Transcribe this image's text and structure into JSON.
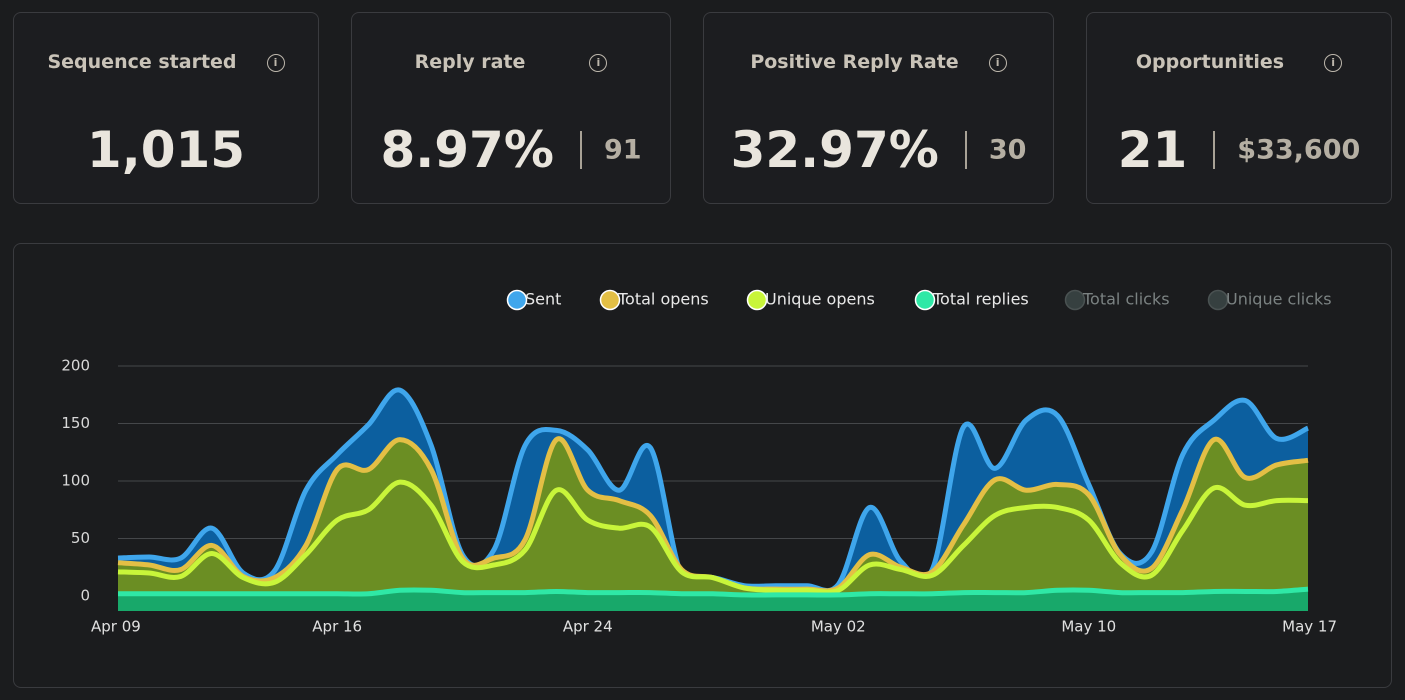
{
  "cards": [
    {
      "title": "Sequence started",
      "value": "1,015"
    },
    {
      "title": "Reply rate",
      "value": "8.97%",
      "secondary": "91"
    },
    {
      "title": "Positive Reply Rate",
      "value": "32.97%",
      "secondary": "30"
    },
    {
      "title": "Opportunities",
      "value": "21",
      "secondary": "$33,600"
    }
  ],
  "chart_data": {
    "type": "area",
    "categories": [
      "Apr 09",
      null,
      null,
      null,
      null,
      null,
      null,
      "Apr 16",
      null,
      null,
      null,
      null,
      null,
      null,
      null,
      "Apr 24",
      null,
      null,
      null,
      null,
      null,
      null,
      null,
      "May 02",
      null,
      null,
      null,
      null,
      null,
      null,
      null,
      "May 10",
      null,
      null,
      null,
      null,
      null,
      null,
      "May 17"
    ],
    "series": [
      {
        "name": "Sent",
        "color": "#3fa6ec",
        "fill": "#0c5f9f",
        "values": [
          33,
          34,
          33,
          59,
          20,
          22,
          92,
          123,
          149,
          179,
          131,
          36,
          40,
          131,
          144,
          127,
          92,
          129,
          18,
          16,
          9,
          9,
          9,
          10,
          77,
          30,
          23,
          147,
          111,
          153,
          157,
          97,
          37,
          38,
          123,
          153,
          170,
          137,
          146
        ]
      },
      {
        "name": "Total opens",
        "color": "#e3bf45",
        "fill": "#6b8e23",
        "values": [
          29,
          27,
          23,
          44,
          17,
          16,
          44,
          110,
          110,
          136,
          110,
          33,
          33,
          49,
          136,
          92,
          83,
          70,
          23,
          16,
          7,
          6,
          6,
          7,
          36,
          25,
          21,
          62,
          101,
          92,
          97,
          88,
          36,
          24,
          75,
          136,
          103,
          114,
          118
        ]
      },
      {
        "name": "Unique opens",
        "color": "#c8f53a",
        "fill": "#6b8e23",
        "values": [
          21,
          20,
          17,
          37,
          16,
          12,
          36,
          66,
          75,
          99,
          79,
          30,
          27,
          40,
          92,
          66,
          59,
          60,
          21,
          16,
          7,
          5,
          5,
          5,
          27,
          23,
          18,
          44,
          70,
          77,
          77,
          66,
          29,
          18,
          57,
          94,
          79,
          83,
          83
        ]
      },
      {
        "name": "Total replies",
        "color": "#2fe8a6",
        "fill": "#18a86a",
        "values": [
          2,
          2,
          2,
          2,
          2,
          2,
          2,
          2,
          2,
          5,
          5,
          3,
          3,
          3,
          4,
          3,
          3,
          3,
          2,
          2,
          1,
          1,
          1,
          1,
          2,
          2,
          2,
          3,
          3,
          3,
          5,
          5,
          3,
          3,
          3,
          4,
          4,
          4,
          6
        ]
      }
    ],
    "hidden_series": [
      {
        "name": "Total clicks",
        "color": "#364040"
      },
      {
        "name": "Unique clicks",
        "color": "#364040"
      }
    ],
    "ylim": [
      -13,
      200
    ],
    "yticks": [
      0,
      50,
      100,
      150,
      200
    ],
    "grid": true
  }
}
